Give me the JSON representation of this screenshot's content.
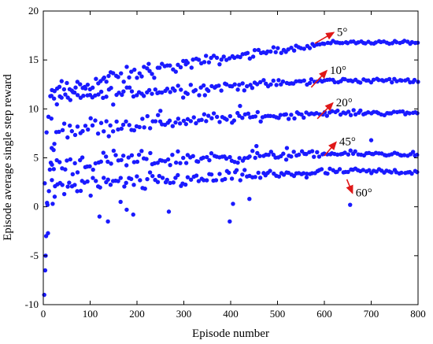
{
  "chart_data": {
    "type": "scatter",
    "xlabel": "Episode number",
    "ylabel": "Episode average single step reward",
    "xlim": [
      0,
      800
    ],
    "ylim": [
      -10,
      20
    ],
    "xticks": [
      "0",
      "100",
      "200",
      "300",
      "400",
      "500",
      "600",
      "700",
      "800"
    ],
    "yticks": [
      "-10",
      "-5",
      "0",
      "5",
      "10",
      "15",
      "20"
    ],
    "grid": false,
    "point_color": "#1a1aff",
    "arrow_color": "#e01818",
    "bands": [
      {
        "label": "5°",
        "start": 11.0,
        "end": 16.8,
        "jitter": 0.25
      },
      {
        "label": "10°",
        "start": 10.7,
        "end": 12.9,
        "jitter": 0.35
      },
      {
        "label": "20°",
        "start": 7.6,
        "end": 9.6,
        "jitter": 0.35
      },
      {
        "label": "45°",
        "start": 4.2,
        "end": 5.4,
        "jitter": 0.4
      },
      {
        "label": "60°",
        "start": 1.5,
        "end": 3.6,
        "jitter": 0.45
      }
    ],
    "annotations": [
      {
        "text": "5°",
        "x": 620,
        "y": 17.8,
        "tail_x": 580,
        "tail_y": 16.7
      },
      {
        "text": "10°",
        "x": 605,
        "y": 13.9,
        "tail_x": 572,
        "tail_y": 12.2
      },
      {
        "text": "20°",
        "x": 618,
        "y": 10.6,
        "tail_x": 585,
        "tail_y": 9.0
      },
      {
        "text": "45°",
        "x": 625,
        "y": 6.6,
        "tail_x": 600,
        "tail_y": 5.2
      },
      {
        "text": "60°",
        "x": 660,
        "y": 1.4,
        "tail_x": 648,
        "tail_y": 2.8
      }
    ]
  }
}
